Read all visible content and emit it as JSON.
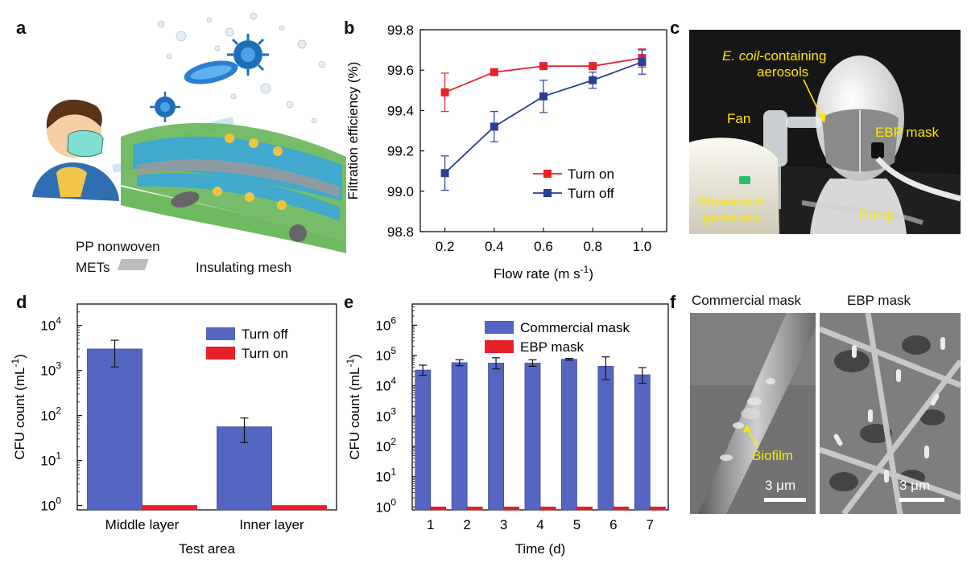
{
  "panels": {
    "a": {
      "letter": "a",
      "legend": [
        "PP nonwoven",
        "METs",
        "Insulating mesh"
      ],
      "colors": {
        "pp": "#7bc96f",
        "mets": "#3aa6d8",
        "mesh": "#bcbcbc"
      }
    },
    "c": {
      "letter": "c",
      "labels": {
        "aerosol_italic": "E. coil",
        "aerosol_rest": "-containing",
        "aerosol_line2": "aerosols",
        "fan": "Fan",
        "mask": "EBP mask",
        "generator_1": "Bioaerosol",
        "generator_2": "generator",
        "pump": "Pump"
      },
      "label_color": "#ffe600"
    },
    "f": {
      "letter": "f",
      "left_title": "Commercial mask",
      "right_title": "EBP mask",
      "biofilm": "Biofilm",
      "scale_left": "3 μm",
      "scale_right": "3 μm"
    }
  },
  "chart_data": [
    {
      "id": "b",
      "letter": "b",
      "type": "line",
      "xlabel": "Flow rate (m s",
      "xlabel_sup": "-1",
      "xlabel_end": ")",
      "ylabel": "Filtration efficiency (%)",
      "x": [
        0.2,
        0.4,
        0.6,
        0.8,
        1.0
      ],
      "xticks": [
        "0.2",
        "0.4",
        "0.6",
        "0.8",
        "1.0"
      ],
      "yticks": [
        "98.8",
        "99.0",
        "99.2",
        "99.4",
        "99.6",
        "99.8"
      ],
      "ylim": [
        98.8,
        99.8
      ],
      "series": [
        {
          "name": "Turn on",
          "color": "#e8202a",
          "values": [
            99.49,
            99.59,
            99.62,
            99.62,
            99.66
          ],
          "err": [
            0.095,
            0.015,
            0.01,
            0.01,
            0.045
          ]
        },
        {
          "name": "Turn off",
          "color": "#2b3d97",
          "values": [
            99.09,
            99.32,
            99.47,
            99.55,
            99.64
          ],
          "err": [
            0.085,
            0.075,
            0.08,
            0.04,
            0.06
          ]
        }
      ],
      "legend": "center-right"
    },
    {
      "id": "d",
      "letter": "d",
      "type": "bar",
      "categories": [
        "Middle layer",
        "Inner layer"
      ],
      "xlabel": "Test area",
      "ylabel": "CFU count (mL",
      "ylabel_sup": "-1",
      "ylabel_end": ")",
      "yscale": "log",
      "ylim": [
        0.8,
        30000
      ],
      "yticks": [
        {
          "base": "10",
          "exp": "0"
        },
        {
          "base": "10",
          "exp": "1"
        },
        {
          "base": "10",
          "exp": "2"
        },
        {
          "base": "10",
          "exp": "3"
        },
        {
          "base": "10",
          "exp": "4"
        }
      ],
      "series": [
        {
          "name": "Turn off",
          "color": "#5566c2",
          "values": [
            3000,
            56
          ],
          "err_low": [
            1200,
            25
          ],
          "err_high": [
            4700,
            88
          ]
        },
        {
          "name": "Turn on",
          "color": "#e8202a",
          "values": [
            1,
            1
          ]
        }
      ],
      "legend": "top-right"
    },
    {
      "id": "e",
      "letter": "e",
      "type": "bar",
      "categories": [
        "1",
        "2",
        "3",
        "4",
        "5",
        "6",
        "7"
      ],
      "xlabel": "Time (d)",
      "ylabel": "CFU count (mL",
      "ylabel_sup": "-1",
      "ylabel_end": ")",
      "yscale": "log",
      "ylim": [
        0.8,
        5000000
      ],
      "yticks": [
        {
          "base": "10",
          "exp": "0"
        },
        {
          "base": "10",
          "exp": "1"
        },
        {
          "base": "10",
          "exp": "2"
        },
        {
          "base": "10",
          "exp": "3"
        },
        {
          "base": "10",
          "exp": "4"
        },
        {
          "base": "10",
          "exp": "5"
        },
        {
          "base": "10",
          "exp": "6"
        }
      ],
      "series": [
        {
          "name": "Commercial mask",
          "color": "#5566c2",
          "values": [
            33000,
            58000,
            56000,
            56000,
            75000,
            44000,
            23000
          ],
          "err_low": [
            22000,
            46000,
            36000,
            44000,
            70000,
            16000,
            12000
          ],
          "err_high": [
            48000,
            72000,
            84000,
            72000,
            80000,
            90000,
            40000
          ]
        },
        {
          "name": "EBP mask",
          "color": "#e8202a",
          "values": [
            1,
            1,
            1,
            1,
            1,
            1,
            1
          ]
        }
      ],
      "legend": "top-left"
    }
  ]
}
